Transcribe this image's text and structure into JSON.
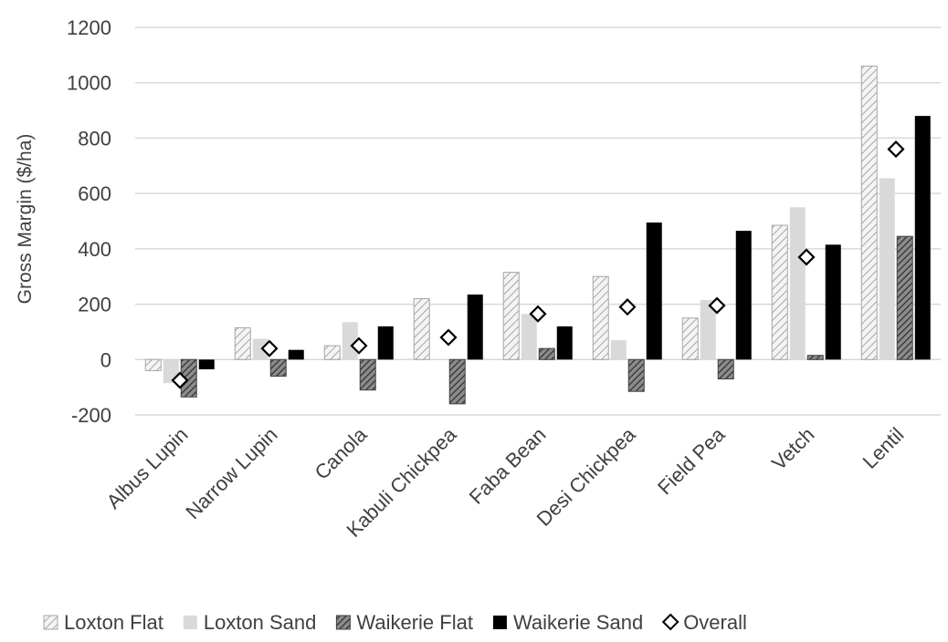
{
  "chart_data": {
    "type": "bar",
    "title": "",
    "xlabel": "",
    "ylabel": "Gross Margin ($/ha)",
    "ylim": [
      -200,
      1200
    ],
    "yticks": [
      -200,
      0,
      200,
      400,
      600,
      800,
      1000,
      1200
    ],
    "grid": true,
    "legend_position": "bottom",
    "categories": [
      "Albus Lupin",
      "Narrow Lupin",
      "Canola",
      "Kabuli Chickpea",
      "Faba Bean",
      "Desi Chickpea",
      "Field Pea",
      "Vetch",
      "Lentil"
    ],
    "series": [
      {
        "name": "Loxton Flat",
        "kind": "bar",
        "pattern": "light-hatch",
        "values": [
          -40,
          115,
          50,
          220,
          315,
          300,
          150,
          485,
          1060
        ]
      },
      {
        "name": "Loxton Sand",
        "kind": "bar",
        "pattern": "light-solid",
        "values": [
          -85,
          75,
          135,
          0,
          165,
          70,
          215,
          550,
          655
        ]
      },
      {
        "name": "Waikerie Flat",
        "kind": "bar",
        "pattern": "dark-hatch",
        "values": [
          -135,
          -60,
          -110,
          -160,
          40,
          -115,
          -70,
          15,
          445
        ]
      },
      {
        "name": "Waikerie Sand",
        "kind": "bar",
        "pattern": "black-solid",
        "values": [
          -35,
          35,
          120,
          235,
          120,
          495,
          465,
          415,
          880
        ]
      },
      {
        "name": "Overall",
        "kind": "marker",
        "marker": "diamond",
        "values": [
          -75,
          40,
          50,
          80,
          165,
          190,
          195,
          370,
          760
        ]
      }
    ],
    "colors": {
      "light": "#d9d9d9",
      "hatch_line": "#9a9a9a",
      "dark": "#404040",
      "black": "#000000",
      "grid": "#d9d9d9"
    }
  }
}
